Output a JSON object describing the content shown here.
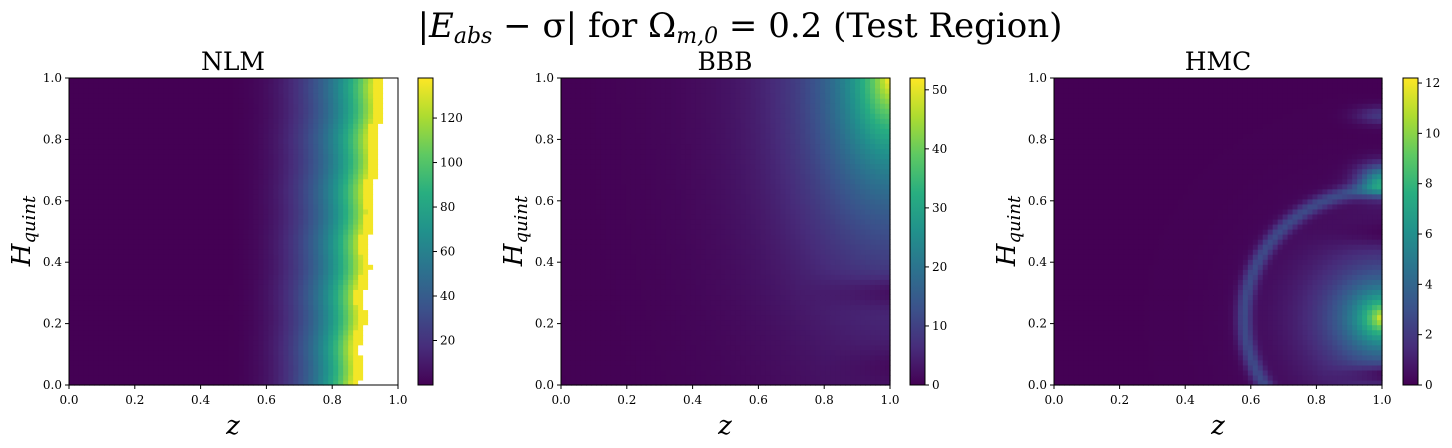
{
  "figure": {
    "suptitle": "|E_abs − σ| for Ω_{m,0} = 0.2 (Test Region)",
    "suptitle_parts": {
      "abs_open": "|",
      "E": "E",
      "E_sub": "abs",
      "minus_sigma": " − σ| ",
      "for_word": "for Ω",
      "omega_sub": "m,0",
      "value": " = 0.2 (Test Region)"
    }
  },
  "chart_data": [
    {
      "type": "heatmap",
      "title": "NLM",
      "xlabel": "z",
      "ylabel_main": "H",
      "ylabel_sub": "quint",
      "xlim": [
        0,
        1
      ],
      "ylim": [
        0,
        1
      ],
      "x_ticks": [
        "0.0",
        "0.2",
        "0.4",
        "0.6",
        "0.8",
        "1.0"
      ],
      "y_ticks": [
        "0.0",
        "0.2",
        "0.4",
        "0.6",
        "0.8",
        "1.0"
      ],
      "colormap": "viridis",
      "colorbar_range": [
        0,
        138
      ],
      "colorbar_ticks": [
        "20",
        "40",
        "60",
        "80",
        "100",
        "120"
      ],
      "colorbar_tick_values": [
        20,
        40,
        60,
        80,
        100,
        120
      ],
      "field": "nlm",
      "missing_color": "#ffffff"
    },
    {
      "type": "heatmap",
      "title": "BBB",
      "xlabel": "z",
      "ylabel_main": "H",
      "ylabel_sub": "quint",
      "xlim": [
        0,
        1
      ],
      "ylim": [
        0,
        1
      ],
      "x_ticks": [
        "0.0",
        "0.2",
        "0.4",
        "0.6",
        "0.8",
        "1.0"
      ],
      "y_ticks": [
        "0.0",
        "0.2",
        "0.4",
        "0.6",
        "0.8",
        "1.0"
      ],
      "colormap": "viridis",
      "colorbar_range": [
        0,
        52
      ],
      "colorbar_ticks": [
        "0",
        "10",
        "20",
        "30",
        "40",
        "50"
      ],
      "colorbar_tick_values": [
        0,
        10,
        20,
        30,
        40,
        50
      ],
      "field": "bbb"
    },
    {
      "type": "heatmap",
      "title": "HMC",
      "xlabel": "z",
      "ylabel_main": "H",
      "ylabel_sub": "quint",
      "xlim": [
        0,
        1
      ],
      "ylim": [
        0,
        1
      ],
      "x_ticks": [
        "0.0",
        "0.2",
        "0.4",
        "0.6",
        "0.8",
        "1.0"
      ],
      "y_ticks": [
        "0.0",
        "0.2",
        "0.4",
        "0.6",
        "0.8",
        "1.0"
      ],
      "colormap": "viridis",
      "colorbar_range": [
        0,
        12.2
      ],
      "colorbar_ticks": [
        "0",
        "2",
        "4",
        "6",
        "8",
        "10",
        "12"
      ],
      "colorbar_tick_values": [
        0,
        2,
        4,
        6,
        8,
        10,
        12
      ],
      "field": "hmc"
    }
  ]
}
